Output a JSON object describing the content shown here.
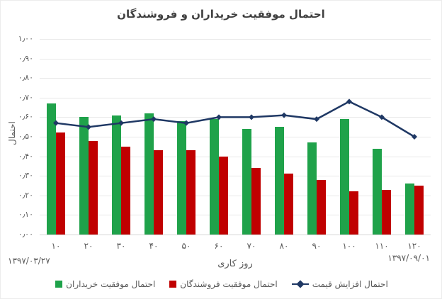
{
  "title": "احتمال موفقیت خریداران و فروشندگان",
  "colors": {
    "buyers_green": "#1fa24a",
    "sellers_red": "#c00000",
    "price_line_navy": "#1f3864",
    "title_text": "#404040",
    "axis_text": "#595959",
    "gridline": "#e9e9e9"
  },
  "axes": {
    "y_title": "احتمال",
    "x_title": "روز کاری",
    "x_start_date": "۱۳۹۷/۰۳/۲۷",
    "x_end_date": "۱۳۹۷/۰۹/۰۱"
  },
  "chart_data": {
    "type": "combo-bar-line",
    "title": "احتمال موفقیت خریداران و فروشندگان",
    "xlabel": "روز کاری",
    "ylabel": "احتمال",
    "ylim": [
      0,
      1
    ],
    "ytick_step": 0.1,
    "grid": true,
    "legend_position": "bottom",
    "categories": [
      "۱۰",
      "۲۰",
      "۳۰",
      "۴۰",
      "۵۰",
      "۶۰",
      "۷۰",
      "۸۰",
      "۹۰",
      "۱۰۰",
      "۱۱۰",
      "۱۲۰"
    ],
    "categories_values": [
      10,
      20,
      30,
      40,
      50,
      60,
      70,
      80,
      90,
      100,
      110,
      120
    ],
    "yticklabels_top_to_bottom": [
      "۱٫۰۰",
      "۰٫۹۰",
      "۰٫۸۰",
      "۰٫۷۰",
      "۰٫۶۰",
      "۰٫۵۰",
      "۰٫۴۰",
      "۰٫۳۰",
      "۰٫۲۰",
      "۰٫۱۰",
      "۰٫۰۰"
    ],
    "x_axis_dates": {
      "start": "۱۳۹۷/۰۳/۲۷",
      "end": "۱۳۹۷/۰۹/۰۱"
    },
    "series": [
      {
        "name": "احتمال موفقیت خریداران",
        "type": "bar",
        "color": "#1fa24a",
        "values": [
          0.67,
          0.6,
          0.61,
          0.62,
          0.58,
          0.59,
          0.54,
          0.55,
          0.47,
          0.59,
          0.44,
          0.26
        ]
      },
      {
        "name": "احتمال موفقیت فروشندگان",
        "type": "bar",
        "color": "#c00000",
        "values": [
          0.52,
          0.48,
          0.45,
          0.43,
          0.43,
          0.4,
          0.34,
          0.31,
          0.28,
          0.22,
          0.23,
          0.25
        ]
      },
      {
        "name": "احتمال افزایش قیمت",
        "type": "line",
        "marker": "diamond",
        "color": "#1f3864",
        "values": [
          0.57,
          0.55,
          0.57,
          0.59,
          0.57,
          0.6,
          0.6,
          0.61,
          0.59,
          0.68,
          0.6,
          0.5
        ]
      }
    ]
  }
}
